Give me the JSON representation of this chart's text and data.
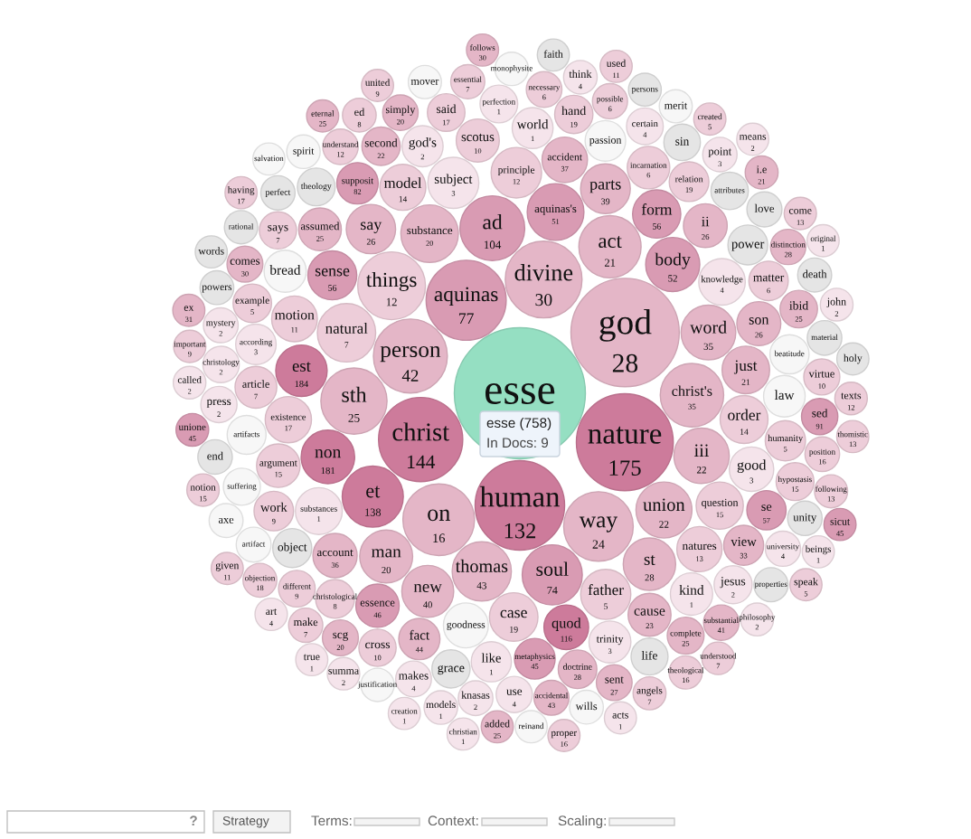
{
  "chart_data": {
    "type": "other",
    "data_labels": true,
    "categories": [
      "esse",
      "god",
      "nature",
      "human",
      "christ",
      "aquinas",
      "divine",
      "person",
      "on",
      "way",
      "things",
      "sth",
      "ad",
      "christ's",
      "act",
      "et",
      "soul",
      "thomas",
      "natural",
      "substance",
      "aquinas's",
      "union",
      "iii",
      "word",
      "body",
      "non",
      "man",
      "st",
      "new",
      "est",
      "subject",
      "principle",
      "father",
      "parts",
      "say",
      "sense",
      "case",
      "form",
      "order",
      "just",
      "question",
      "substances",
      "knowledge",
      "existence",
      "model",
      "motion",
      "accident",
      "natures",
      "goodness",
      "quod",
      "good",
      "account",
      "son",
      "ii",
      "argument",
      "essence",
      "scotus",
      "cause",
      "assumed",
      "incarnation",
      "kind",
      "bread",
      "trinity",
      "article",
      "law",
      "supposit",
      "fact",
      "god's",
      "world",
      "metaphysics",
      "passion",
      "according",
      "humanity",
      "like",
      "view",
      "power",
      "relation",
      "work",
      "matter",
      "se",
      "beatitude",
      "object",
      "artifacts",
      "christological",
      "doctrine",
      "example",
      "second",
      "hand",
      "grace",
      "jesus",
      "hypostasis",
      "theology",
      "perfection",
      "said",
      "ibid",
      "attributes",
      "cross",
      "says",
      "suffering",
      "life",
      "complete",
      "certain",
      "different",
      "sin",
      "christology",
      "sed",
      "press",
      "use",
      "virtue",
      "scg",
      "comes",
      "sent",
      "makes",
      "necessary",
      "understand",
      "simply",
      "substantial",
      "distinction",
      "university",
      "possible",
      "love",
      "accidental",
      "artifact",
      "mystery",
      "knasas",
      "position",
      "material",
      "unity",
      "end",
      "point",
      "perfect",
      "make",
      "properties",
      "essential",
      "death",
      "axe",
      "objection",
      "wills",
      "powers",
      "ed",
      "think",
      "models",
      "spirit",
      "monophysite",
      "justification",
      "rational",
      "theological",
      "mover",
      "following",
      "merit",
      "angels",
      "i.e",
      "philosophy",
      "persons",
      "john",
      "unione",
      "called",
      "understood",
      "texts",
      "summa",
      "notion",
      "art",
      "come",
      "important",
      "created",
      "reinand",
      "added",
      "holy",
      "thomistic",
      "beings",
      "true",
      "united",
      "words",
      "original",
      "acts",
      "faith",
      "eternal",
      "creation",
      "used",
      "given",
      "ex",
      "salvation",
      "having",
      "speak",
      "means",
      "proper",
      "follows",
      "christian",
      "sicut"
    ],
    "values": [
      null,
      28,
      175,
      132,
      144,
      77,
      30,
      42,
      16,
      24,
      12,
      25,
      104,
      35,
      21,
      138,
      74,
      43,
      7,
      20,
      51,
      22,
      22,
      35,
      52,
      181,
      20,
      28,
      40,
      184,
      3,
      12,
      5,
      39,
      26,
      56,
      19,
      56,
      14,
      21,
      15,
      1,
      4,
      17,
      14,
      11,
      37,
      13,
      null,
      116,
      3,
      36,
      26,
      26,
      15,
      46,
      10,
      23,
      25,
      6,
      1,
      null,
      3,
      7,
      null,
      82,
      44,
      2,
      1,
      45,
      null,
      3,
      5,
      1,
      33,
      null,
      19,
      9,
      6,
      57,
      null,
      null,
      null,
      8,
      28,
      5,
      22,
      19,
      null,
      2,
      15,
      null,
      1,
      17,
      25,
      null,
      10,
      7,
      null,
      null,
      25,
      4,
      9,
      null,
      2,
      91,
      2,
      4,
      10,
      20,
      30,
      27,
      4,
      6,
      12,
      20,
      41,
      28,
      4,
      6,
      null,
      43,
      null,
      2,
      2,
      16,
      null,
      null,
      null,
      3,
      null,
      7,
      null,
      7,
      null,
      null,
      18,
      null,
      null,
      8,
      4,
      1,
      null,
      null,
      null,
      null,
      16,
      null,
      13,
      null,
      7,
      21,
      2,
      null,
      2,
      45,
      2,
      7,
      12,
      2,
      15,
      4,
      13,
      9,
      5,
      null,
      25,
      null,
      13,
      1,
      1,
      9,
      null,
      1,
      1,
      null,
      25,
      1,
      11,
      11,
      31,
      null,
      17,
      5,
      2,
      16,
      30,
      1,
      45
    ],
    "colors": [
      "#95dfc2",
      "#e4b6c7",
      "#cd7b9b",
      "#cd7b9b",
      "#cd7b9b",
      "#d99bb3",
      "#e4b6c7",
      "#e4b6c7",
      "#e4b6c7",
      "#e4b6c7",
      "#edcdd9",
      "#e4b6c7",
      "#d99bb3",
      "#e4b6c7",
      "#e4b6c7",
      "#cd7b9b",
      "#d99bb3",
      "#e4b6c7",
      "#edcdd9",
      "#e4b6c7",
      "#d99bb3",
      "#e4b6c7",
      "#e4b6c7",
      "#e4b6c7",
      "#d99bb3",
      "#cd7b9b",
      "#e4b6c7",
      "#e4b6c7",
      "#e4b6c7",
      "#cd7b9b",
      "#f5e4eb",
      "#edcdd9",
      "#edcdd9",
      "#e4b6c7",
      "#e4b6c7",
      "#d99bb3",
      "#edcdd9",
      "#d99bb3",
      "#edcdd9",
      "#e4b6c7",
      "#edcdd9",
      "#f5e4eb",
      "#f5e4eb",
      "#edcdd9",
      "#edcdd9",
      "#edcdd9",
      "#e4b6c7",
      "#edcdd9",
      "#f7f7f7",
      "#cd7b9b",
      "#f5e4eb",
      "#e4b6c7",
      "#e4b6c7",
      "#e4b6c7",
      "#edcdd9",
      "#d99bb3",
      "#edcdd9",
      "#e4b6c7",
      "#e4b6c7",
      "#edcdd9",
      "#f5e4eb",
      "#f7f7f7",
      "#f5e4eb",
      "#edcdd9",
      "#f7f7f7",
      "#d99bb3",
      "#e4b6c7",
      "#f5e4eb",
      "#f5e4eb",
      "#d99bb3",
      "#f7f7f7",
      "#f5e4eb",
      "#edcdd9",
      "#f5e4eb",
      "#e4b6c7",
      "#e5e5e5",
      "#edcdd9",
      "#edcdd9",
      "#edcdd9",
      "#d99bb3",
      "#f7f7f7",
      "#e5e5e5",
      "#f7f7f7",
      "#edcdd9",
      "#e4b6c7",
      "#edcdd9",
      "#e4b6c7",
      "#edcdd9",
      "#e5e5e5",
      "#f5e4eb",
      "#edcdd9",
      "#e5e5e5",
      "#f5e4eb",
      "#edcdd9",
      "#e4b6c7",
      "#e5e5e5",
      "#edcdd9",
      "#edcdd9",
      "#f7f7f7",
      "#e5e5e5",
      "#e4b6c7",
      "#f5e4eb",
      "#edcdd9",
      "#e5e5e5",
      "#f5e4eb",
      "#d99bb3",
      "#f5e4eb",
      "#f5e4eb",
      "#edcdd9",
      "#e4b6c7",
      "#e4b6c7",
      "#e4b6c7",
      "#f5e4eb",
      "#edcdd9",
      "#edcdd9",
      "#e4b6c7",
      "#e4b6c7",
      "#e4b6c7",
      "#f5e4eb",
      "#edcdd9",
      "#e5e5e5",
      "#e4b6c7",
      "#f7f7f7",
      "#f5e4eb",
      "#f5e4eb",
      "#edcdd9",
      "#e5e5e5",
      "#e5e5e5",
      "#e5e5e5",
      "#f5e4eb",
      "#e5e5e5",
      "#edcdd9",
      "#e5e5e5",
      "#edcdd9",
      "#e5e5e5",
      "#f7f7f7",
      "#edcdd9",
      "#f7f7f7",
      "#e5e5e5",
      "#edcdd9",
      "#f5e4eb",
      "#f5e4eb",
      "#f7f7f7",
      "#f7f7f7",
      "#f7f7f7",
      "#e5e5e5",
      "#edcdd9",
      "#f7f7f7",
      "#edcdd9",
      "#f7f7f7",
      "#edcdd9",
      "#e4b6c7",
      "#f5e4eb",
      "#e5e5e5",
      "#f5e4eb",
      "#d99bb3",
      "#f5e4eb",
      "#edcdd9",
      "#edcdd9",
      "#f5e4eb",
      "#edcdd9",
      "#f5e4eb",
      "#edcdd9",
      "#edcdd9",
      "#edcdd9",
      "#f7f7f7",
      "#e4b6c7",
      "#e5e5e5",
      "#edcdd9",
      "#f5e4eb",
      "#f5e4eb",
      "#edcdd9",
      "#e5e5e5",
      "#f5e4eb",
      "#f5e4eb",
      "#e5e5e5",
      "#e4b6c7",
      "#f5e4eb",
      "#edcdd9",
      "#edcdd9",
      "#e4b6c7",
      "#f7f7f7",
      "#edcdd9",
      "#edcdd9",
      "#f5e4eb",
      "#edcdd9",
      "#e4b6c7",
      "#f5e4eb",
      "#d99bb3"
    ],
    "annotations": [
      "esse (758)",
      "In Docs: 9",
      "?",
      "Strategy",
      "Terms:",
      "Context:",
      "Scaling:"
    ]
  }
}
